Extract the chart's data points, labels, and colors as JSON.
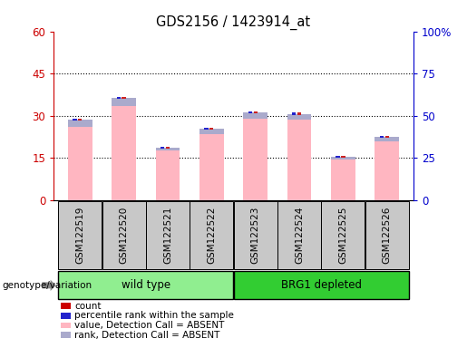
{
  "title": "GDS2156 / 1423914_at",
  "samples": [
    "GSM122519",
    "GSM122520",
    "GSM122521",
    "GSM122522",
    "GSM122523",
    "GSM122524",
    "GSM122525",
    "GSM122526"
  ],
  "pink_values": [
    26.0,
    33.5,
    17.5,
    23.5,
    29.0,
    28.5,
    14.5,
    21.0
  ],
  "blue_rank_values": [
    2.5,
    2.8,
    1.2,
    1.8,
    2.2,
    2.2,
    0.8,
    1.5
  ],
  "ylim_left": [
    0,
    60
  ],
  "ylim_right": [
    0,
    100
  ],
  "yticks_left": [
    0,
    15,
    30,
    45,
    60
  ],
  "yticks_right": [
    0,
    25,
    50,
    75,
    100
  ],
  "ytick_labels_left": [
    "0",
    "15",
    "30",
    "45",
    "60"
  ],
  "ytick_labels_right": [
    "0",
    "25",
    "50",
    "75",
    "100%"
  ],
  "groups": [
    {
      "label": "wild type",
      "start": 0,
      "end": 3,
      "color": "#90EE90"
    },
    {
      "label": "BRG1 depleted",
      "start": 4,
      "end": 7,
      "color": "#32CD32"
    }
  ],
  "group_label": "genotype/variation",
  "legend_items": [
    {
      "color": "#CC0000",
      "label": "count"
    },
    {
      "color": "#2222CC",
      "label": "percentile rank within the sample"
    },
    {
      "color": "#FFB6C1",
      "label": "value, Detection Call = ABSENT"
    },
    {
      "color": "#AAAACC",
      "label": "rank, Detection Call = ABSENT"
    }
  ],
  "pink_color": "#FFB6C1",
  "blue_rank_color": "#AAAACC",
  "red_count_color": "#CC2222",
  "blue_pct_color": "#2222CC",
  "left_axis_color": "#CC0000",
  "right_axis_color": "#0000CC",
  "bar_width": 0.55
}
